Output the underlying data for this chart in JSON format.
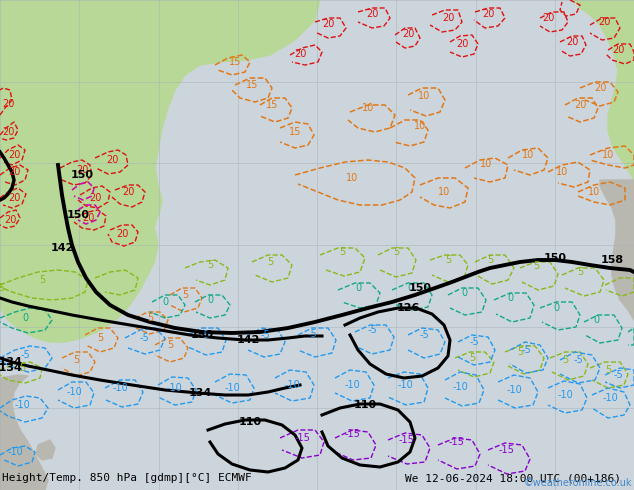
{
  "title_bottom": "Height/Temp. 850 hPa [gdmp][°C] ECMWF",
  "date_str": "We 12-06-2024 18:00 UTC (00+186)",
  "watermark": "©weatheronline.co.uk",
  "bg_ocean": "#cdd5dc",
  "bg_land_green": "#b8d898",
  "bg_land_gray": "#b8b8b0",
  "grid_color": "#a8b0b8",
  "title_color": "#000000",
  "date_color": "#000000",
  "watermark_color": "#4488cc",
  "font_size_title": 8,
  "font_size_date": 8,
  "font_size_watermark": 7,
  "red": "#dd1111",
  "orange": "#e07818",
  "lime": "#88b818",
  "teal": "#10a888",
  "cyan_blue": "#2299ee",
  "purple": "#8800cc",
  "magenta": "#cc10aa",
  "black": "#000000"
}
